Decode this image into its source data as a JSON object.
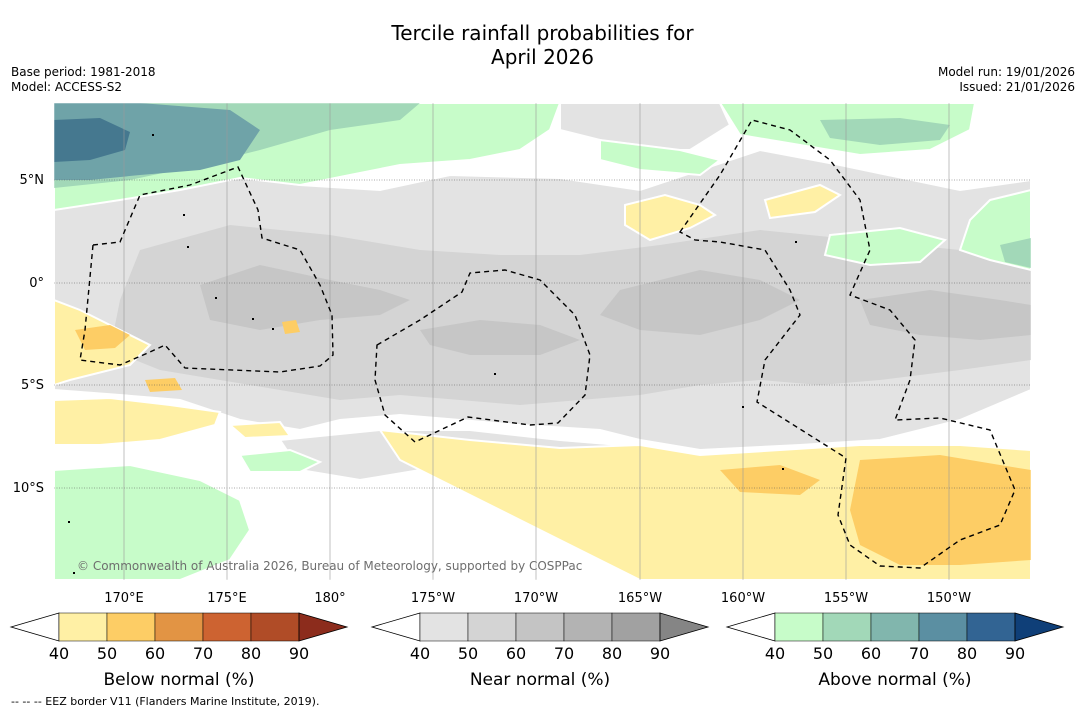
{
  "title": {
    "line1": "Tercile rainfall probabilities for",
    "line2": "April 2026"
  },
  "meta": {
    "base_period": "Base period: 1981-2018",
    "model": "Model: ACCESS-S2",
    "model_run": "Model run: 19/01/2026",
    "issued": "Issued: 21/01/2026"
  },
  "map": {
    "lat_labels": [
      "5°N",
      "0°",
      "5°S",
      "10°S"
    ],
    "lon_labels": [
      "170°E",
      "175°E",
      "180°",
      "175°W",
      "170°W",
      "165°W",
      "160°W",
      "155°W",
      "150°W"
    ],
    "credit": "© Commonwealth of Australia 2026, Bureau of Meteorology, supported by COSPPac"
  },
  "colorbars": [
    {
      "title": "Below normal (%)",
      "ticks": [
        "40",
        "50",
        "60",
        "70",
        "80",
        "90"
      ],
      "colors": [
        "#fff0a5",
        "#fdcd65",
        "#e29444",
        "#cd6331",
        "#b04c27",
        "#8c2c1c"
      ]
    },
    {
      "title": "Near normal (%)",
      "ticks": [
        "40",
        "50",
        "60",
        "70",
        "80",
        "90"
      ],
      "colors": [
        "#e3e3e3",
        "#d4d4d4",
        "#c4c4c4",
        "#b3b3b3",
        "#a1a1a1",
        "#858585"
      ]
    },
    {
      "title": "Above normal (%)",
      "ticks": [
        "40",
        "50",
        "60",
        "70",
        "80",
        "90"
      ],
      "colors": [
        "#c7fcc9",
        "#a2d8b8",
        "#81b6ad",
        "#5b8fa2",
        "#326493",
        "#0f3f78"
      ]
    }
  ],
  "footer": {
    "legend_line": "--  --  -- EEZ border V11 (Flanders Marine Institute, 2019)."
  }
}
